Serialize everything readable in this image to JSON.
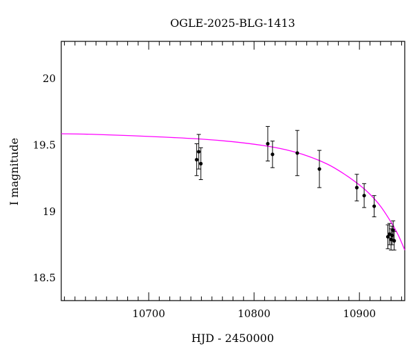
{
  "chart_data": {
    "type": "scatter",
    "title": "OGLE-2025-BLG-1413",
    "xlabel": "HJD - 2450000",
    "ylabel": "I magnitude",
    "xlim": [
      10617,
      10943
    ],
    "ylim": [
      20.28,
      18.33
    ],
    "y_inverted": true,
    "grid": false,
    "x_major_ticks": [
      10700,
      10800,
      10900
    ],
    "x_tick_labels": [
      "10700",
      "10800",
      "10900"
    ],
    "y_major_ticks": [
      18.5,
      19,
      19.5,
      20
    ],
    "y_tick_labels": [
      "18.5",
      "19",
      "19.5",
      "20"
    ],
    "series": [
      {
        "kind": "points_with_errorbars",
        "color": "#000000",
        "points": [
          {
            "x": 10745.5,
            "y": 19.39,
            "err": 0.12
          },
          {
            "x": 10747.5,
            "y": 19.45,
            "err": 0.13
          },
          {
            "x": 10749.5,
            "y": 19.36,
            "err": 0.12
          },
          {
            "x": 10813.0,
            "y": 19.51,
            "err": 0.13
          },
          {
            "x": 10817.5,
            "y": 19.43,
            "err": 0.1
          },
          {
            "x": 10841.0,
            "y": 19.44,
            "err": 0.17
          },
          {
            "x": 10862.0,
            "y": 19.32,
            "err": 0.14
          },
          {
            "x": 10897.5,
            "y": 19.18,
            "err": 0.1
          },
          {
            "x": 10904.5,
            "y": 19.12,
            "err": 0.09
          },
          {
            "x": 10914.0,
            "y": 19.04,
            "err": 0.08
          },
          {
            "x": 10927.0,
            "y": 18.81,
            "err": 0.09
          },
          {
            "x": 10928.5,
            "y": 18.83,
            "err": 0.08
          },
          {
            "x": 10930.0,
            "y": 18.79,
            "err": 0.08
          },
          {
            "x": 10931.0,
            "y": 18.82,
            "err": 0.07
          },
          {
            "x": 10932.0,
            "y": 18.86,
            "err": 0.07
          },
          {
            "x": 10933.0,
            "y": 18.78,
            "err": 0.07
          }
        ]
      },
      {
        "kind": "model_curve",
        "color": "#ff00ff",
        "points": [
          {
            "x": 10617,
            "y": 19.585
          },
          {
            "x": 10650,
            "y": 19.58
          },
          {
            "x": 10700,
            "y": 19.565
          },
          {
            "x": 10750,
            "y": 19.545
          },
          {
            "x": 10780,
            "y": 19.525
          },
          {
            "x": 10810,
            "y": 19.495
          },
          {
            "x": 10830,
            "y": 19.465
          },
          {
            "x": 10850,
            "y": 19.42
          },
          {
            "x": 10870,
            "y": 19.355
          },
          {
            "x": 10885,
            "y": 19.285
          },
          {
            "x": 10900,
            "y": 19.2
          },
          {
            "x": 10910,
            "y": 19.13
          },
          {
            "x": 10920,
            "y": 19.04
          },
          {
            "x": 10930,
            "y": 18.92
          },
          {
            "x": 10937,
            "y": 18.82
          },
          {
            "x": 10943,
            "y": 18.71
          }
        ]
      }
    ]
  }
}
